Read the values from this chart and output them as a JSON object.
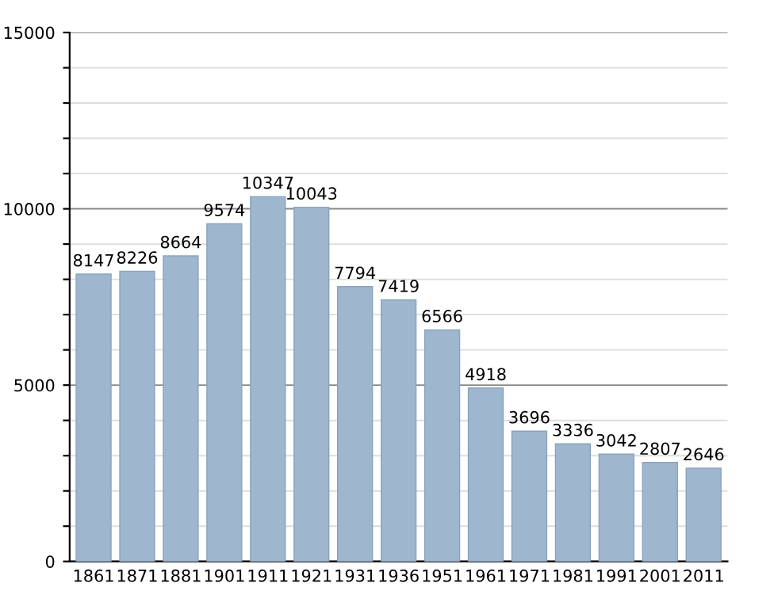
{
  "chart_data": {
    "type": "bar",
    "categories": [
      "1861",
      "1871",
      "1881",
      "1901",
      "1911",
      "1921",
      "1931",
      "1936",
      "1951",
      "1961",
      "1971",
      "1981",
      "1991",
      "2001",
      "2011"
    ],
    "values": [
      8147,
      8226,
      8664,
      9574,
      10347,
      10043,
      7794,
      7419,
      6566,
      4918,
      3696,
      3336,
      3042,
      2807,
      2646
    ],
    "color": "#9fb6cf",
    "ylim": [
      0,
      15000
    ],
    "yticks": [
      0,
      {
        "value": 1000,
        "label": null
      },
      {
        "value": 2000,
        "label": null
      },
      {
        "value": 3000,
        "label": null
      },
      {
        "value": 4000,
        "label": null
      },
      5000,
      {
        "value": 6000,
        "label": null
      },
      {
        "value": 7000,
        "label": null
      },
      {
        "value": 8000,
        "label": null
      },
      {
        "value": 9000,
        "label": null
      },
      10000,
      {
        "value": 11000,
        "label": null
      },
      {
        "value": 12000,
        "label": null
      },
      {
        "value": 13000,
        "label": null
      },
      {
        "value": 14000,
        "label": null
      },
      15000
    ],
    "grid": "y",
    "data_labels": true
  }
}
